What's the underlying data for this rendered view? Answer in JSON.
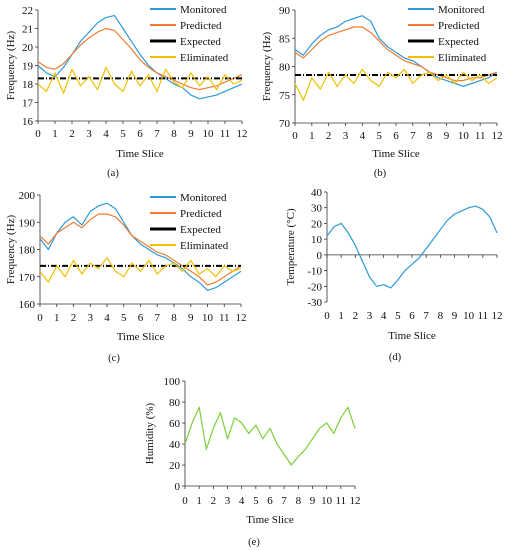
{
  "colors": {
    "monitored": "#2E9BD6",
    "predicted": "#F07C30",
    "expected": "#000000",
    "eliminated": "#F2BF00",
    "temperature": "#2E9BD6",
    "humidity": "#7AD13A",
    "axis": "#333333"
  },
  "chart_data": [
    {
      "id": "a",
      "type": "line",
      "caption": "(a)",
      "xlabel": "Time Slice",
      "ylabel": "Frequency (Hz)",
      "xlim": [
        0,
        12
      ],
      "ylim": [
        16,
        22
      ],
      "xticks": [
        "0",
        "1",
        "2",
        "3",
        "4",
        "5",
        "6",
        "7",
        "8",
        "9",
        "10",
        "11",
        "12"
      ],
      "yticks": [
        "16",
        "17",
        "18",
        "19",
        "20",
        "21",
        "22"
      ],
      "legend": [
        "Monitored",
        "Predicted",
        "Expected",
        "Eliminated"
      ],
      "series": [
        {
          "name": "Monitored",
          "x": [
            0,
            0.5,
            1,
            1.5,
            2,
            2.5,
            3,
            3.5,
            4,
            4.5,
            5,
            5.5,
            6,
            6.5,
            7,
            7.5,
            8,
            8.5,
            9,
            9.5,
            10,
            10.5,
            11,
            11.5,
            12
          ],
          "y": [
            19.0,
            18.6,
            18.4,
            18.9,
            19.6,
            20.3,
            20.8,
            21.3,
            21.6,
            21.7,
            21.0,
            20.3,
            19.6,
            19.0,
            18.6,
            18.3,
            18.0,
            17.8,
            17.4,
            17.2,
            17.3,
            17.4,
            17.6,
            17.8,
            18.0
          ]
        },
        {
          "name": "Predicted",
          "x": [
            0,
            0.5,
            1,
            1.5,
            2,
            2.5,
            3,
            3.5,
            4,
            4.5,
            5,
            5.5,
            6,
            6.5,
            7,
            7.5,
            8,
            8.5,
            9,
            9.5,
            10,
            10.5,
            11,
            11.5,
            12
          ],
          "y": [
            19.2,
            18.9,
            18.8,
            19.1,
            19.6,
            20.1,
            20.5,
            20.8,
            21.0,
            20.9,
            20.4,
            19.9,
            19.3,
            18.9,
            18.6,
            18.4,
            18.2,
            18.0,
            17.8,
            17.7,
            17.8,
            17.9,
            18.1,
            18.3,
            18.5
          ]
        },
        {
          "name": "Expected",
          "x": [
            0,
            12
          ],
          "y": [
            18.3,
            18.3
          ]
        },
        {
          "name": "Eliminated",
          "x": [
            0,
            0.5,
            1,
            1.5,
            2,
            2.5,
            3,
            3.5,
            4,
            4.5,
            5,
            5.5,
            6,
            6.5,
            7,
            7.5,
            8,
            8.5,
            9,
            9.5,
            10,
            10.5,
            11,
            11.5,
            12
          ],
          "y": [
            18.0,
            17.6,
            18.6,
            17.5,
            18.8,
            17.9,
            18.4,
            17.7,
            18.9,
            18.0,
            17.6,
            18.7,
            17.9,
            18.5,
            17.6,
            18.8,
            18.1,
            17.8,
            18.6,
            17.9,
            18.4,
            17.7,
            18.5,
            18.0,
            18.2
          ]
        }
      ]
    },
    {
      "id": "b",
      "type": "line",
      "caption": "(b)",
      "xlabel": "Time Slice",
      "ylabel": "Frequency (Hz)",
      "xlim": [
        0,
        12
      ],
      "ylim": [
        70,
        90
      ],
      "xticks": [
        "0",
        "1",
        "2",
        "3",
        "4",
        "5",
        "6",
        "7",
        "8",
        "9",
        "10",
        "11",
        "12"
      ],
      "yticks": [
        "70",
        "75",
        "80",
        "85",
        "90"
      ],
      "legend": [
        "Monitored",
        "Predicted",
        "Expected",
        "Eliminated"
      ],
      "series": [
        {
          "name": "Monitored",
          "x": [
            0,
            0.5,
            1,
            1.5,
            2,
            2.5,
            3,
            3.5,
            4,
            4.5,
            5,
            5.5,
            6,
            6.5,
            7,
            7.5,
            8,
            8.5,
            9,
            9.5,
            10,
            10.5,
            11,
            11.5,
            12
          ],
          "y": [
            83.0,
            82.0,
            84.0,
            85.5,
            86.5,
            87.0,
            88.0,
            88.5,
            89.0,
            88.0,
            85.0,
            83.5,
            82.5,
            81.5,
            81.0,
            80.0,
            79.0,
            78.0,
            77.5,
            77.0,
            76.5,
            77.0,
            77.5,
            78.0,
            79.0
          ]
        },
        {
          "name": "Predicted",
          "x": [
            0,
            0.5,
            1,
            1.5,
            2,
            2.5,
            3,
            3.5,
            4,
            4.5,
            5,
            5.5,
            6,
            6.5,
            7,
            7.5,
            8,
            8.5,
            9,
            9.5,
            10,
            10.5,
            11,
            11.5,
            12
          ],
          "y": [
            82.5,
            81.5,
            83.0,
            84.5,
            85.5,
            86.0,
            86.5,
            87.0,
            87.0,
            86.0,
            84.5,
            83.0,
            82.0,
            81.0,
            80.5,
            80.0,
            79.0,
            78.5,
            78.0,
            77.5,
            77.5,
            78.0,
            78.0,
            78.5,
            79.0
          ]
        },
        {
          "name": "Expected",
          "x": [
            0,
            12
          ],
          "y": [
            78.5,
            78.5
          ]
        },
        {
          "name": "Eliminated",
          "x": [
            0,
            0.5,
            1,
            1.5,
            2,
            2.5,
            3,
            3.5,
            4,
            4.5,
            5,
            5.5,
            6,
            6.5,
            7,
            7.5,
            8,
            8.5,
            9,
            9.5,
            10,
            10.5,
            11,
            11.5,
            12
          ],
          "y": [
            77.0,
            74.0,
            78.0,
            76.0,
            79.0,
            76.5,
            78.5,
            77.0,
            79.5,
            77.5,
            76.5,
            79.0,
            78.0,
            79.5,
            77.0,
            78.5,
            79.0,
            77.5,
            78.5,
            77.0,
            79.0,
            77.5,
            78.5,
            77.0,
            78.0
          ]
        }
      ]
    },
    {
      "id": "c",
      "type": "line",
      "caption": "(c)",
      "xlabel": "Time Slice",
      "ylabel": "Frequency (Hz)",
      "xlim": [
        0,
        12
      ],
      "ylim": [
        160,
        200
      ],
      "xticks": [
        "0",
        "1",
        "2",
        "3",
        "4",
        "5",
        "6",
        "7",
        "8",
        "9",
        "10",
        "11",
        "12"
      ],
      "yticks": [
        "160",
        "170",
        "180",
        "190",
        "200"
      ],
      "legend": [
        "Monitored",
        "Predicted",
        "Expected",
        "Eliminated"
      ],
      "series": [
        {
          "name": "Monitored",
          "x": [
            0,
            0.5,
            1,
            1.5,
            2,
            2.5,
            3,
            3.5,
            4,
            4.5,
            5,
            5.5,
            6,
            6.5,
            7,
            7.5,
            8,
            8.5,
            9,
            9.5,
            10,
            10.5,
            11,
            11.5,
            12
          ],
          "y": [
            184,
            180,
            186,
            190,
            192,
            189,
            194,
            196,
            197,
            195,
            190,
            185,
            182,
            180,
            178,
            177,
            175,
            173,
            170,
            168,
            165,
            166,
            168,
            170,
            172
          ]
        },
        {
          "name": "Predicted",
          "x": [
            0,
            0.5,
            1,
            1.5,
            2,
            2.5,
            3,
            3.5,
            4,
            4.5,
            5,
            5.5,
            6,
            6.5,
            7,
            7.5,
            8,
            8.5,
            9,
            9.5,
            10,
            10.5,
            11,
            11.5,
            12
          ],
          "y": [
            185,
            182,
            186,
            188,
            190,
            188,
            191,
            193,
            193,
            192,
            189,
            185,
            183,
            181,
            179,
            178,
            176,
            174,
            172,
            170,
            167,
            168,
            170,
            172,
            174
          ]
        },
        {
          "name": "Expected",
          "x": [
            0,
            12
          ],
          "y": [
            174,
            174
          ]
        },
        {
          "name": "Eliminated",
          "x": [
            0,
            0.5,
            1,
            1.5,
            2,
            2.5,
            3,
            3.5,
            4,
            4.5,
            5,
            5.5,
            6,
            6.5,
            7,
            7.5,
            8,
            8.5,
            9,
            9.5,
            10,
            10.5,
            11,
            11.5,
            12
          ],
          "y": [
            172,
            168,
            174,
            170,
            176,
            171,
            175,
            173,
            177,
            172,
            170,
            175,
            172,
            176,
            171,
            174,
            175,
            172,
            176,
            171,
            173,
            170,
            174,
            172,
            173
          ]
        }
      ]
    },
    {
      "id": "d",
      "type": "line",
      "caption": "(d)",
      "xlabel": "Time Slice",
      "ylabel": "Temperature (°C)",
      "xlim": [
        0,
        12
      ],
      "ylim": [
        -30,
        40
      ],
      "xticks": [
        "0",
        "1",
        "2",
        "3",
        "4",
        "5",
        "6",
        "7",
        "8",
        "9",
        "10",
        "11",
        "12"
      ],
      "yticks": [
        "-30",
        "-20",
        "-10",
        "0",
        "10",
        "20",
        "30",
        "40"
      ],
      "legend": [],
      "series": [
        {
          "name": "",
          "x": [
            0,
            0.5,
            1,
            1.5,
            2,
            2.5,
            3,
            3.5,
            4,
            4.5,
            5,
            5.5,
            6,
            6.5,
            7,
            7.5,
            8,
            8.5,
            9,
            9.5,
            10,
            10.5,
            11,
            11.5,
            12
          ],
          "y": [
            12,
            18,
            20,
            14,
            6,
            -4,
            -14,
            -20,
            -19,
            -21,
            -16,
            -10,
            -6,
            -2,
            4,
            10,
            16,
            22,
            26,
            28,
            30,
            31,
            29,
            24,
            14
          ]
        }
      ]
    },
    {
      "id": "e",
      "type": "line",
      "caption": "(e)",
      "xlabel": "Time Slice",
      "ylabel": "Humidity (%)",
      "xlim": [
        0,
        12
      ],
      "ylim": [
        0,
        100
      ],
      "xticks": [
        "0",
        "1",
        "2",
        "3",
        "4",
        "5",
        "6",
        "7",
        "8",
        "9",
        "10",
        "11",
        "12"
      ],
      "yticks": [
        "0",
        "20",
        "40",
        "60",
        "80",
        "100"
      ],
      "legend": [],
      "series": [
        {
          "name": "",
          "x": [
            0,
            0.5,
            1,
            1.5,
            2,
            2.5,
            3,
            3.5,
            4,
            4.5,
            5,
            5.5,
            6,
            6.5,
            7,
            7.5,
            8,
            8.5,
            9,
            9.5,
            10,
            10.5,
            11,
            11.5,
            12
          ],
          "y": [
            40,
            60,
            75,
            35,
            55,
            70,
            45,
            65,
            60,
            50,
            58,
            45,
            55,
            40,
            30,
            20,
            28,
            35,
            45,
            55,
            60,
            50,
            65,
            75,
            55
          ]
        }
      ]
    }
  ]
}
